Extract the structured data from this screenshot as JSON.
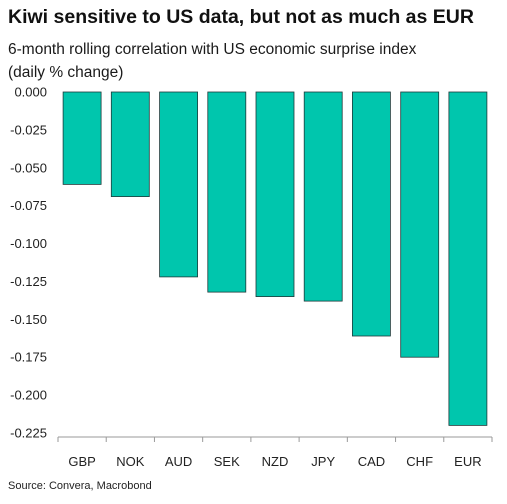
{
  "title": "Kiwi sensitive to US data, but not as much as EUR",
  "subtitle_line1": "6-month rolling correlation with US economic surprise index",
  "subtitle_line2": "(daily % change)",
  "source": "Source: Convera, Macrobond",
  "colors": {
    "bar_fill": "#00c6ad",
    "bar_stroke": "#1e3a3a",
    "axis": "#9a9a9a"
  },
  "chart_data": {
    "type": "bar",
    "title": "Kiwi sensitive to US data, but not as much as EUR",
    "subtitle": "6-month rolling correlation with US economic surprise index (daily % change)",
    "xlabel": "",
    "ylabel": "",
    "categories": [
      "GBP",
      "NOK",
      "AUD",
      "SEK",
      "NZD",
      "JPY",
      "CAD",
      "CHF",
      "EUR"
    ],
    "values": [
      -0.061,
      -0.069,
      -0.122,
      -0.132,
      -0.135,
      -0.138,
      -0.161,
      -0.175,
      -0.22
    ],
    "ylim": [
      -0.225,
      0.0
    ],
    "yticks": [
      0.0,
      -0.025,
      -0.05,
      -0.075,
      -0.1,
      -0.125,
      -0.15,
      -0.175,
      -0.2,
      -0.225
    ],
    "ytick_labels": [
      "0.000",
      "-0.025",
      "-0.050",
      "-0.075",
      "-0.100",
      "-0.125",
      "-0.150",
      "-0.175",
      "-0.200",
      "-0.225"
    ],
    "grid": false,
    "legend": "none"
  }
}
